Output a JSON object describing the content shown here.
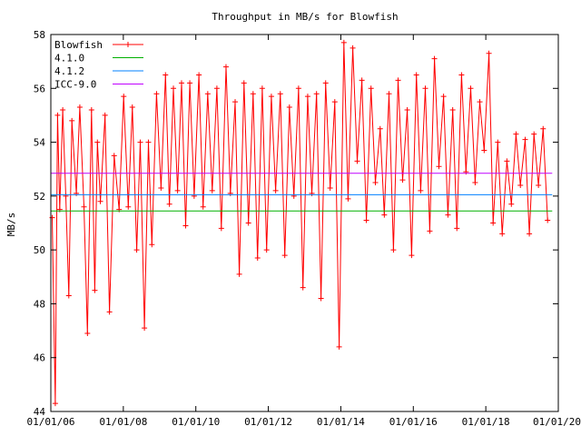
{
  "chart_data": {
    "type": "line",
    "title": "Throughput in MB/s for Blowfish",
    "xlabel": "",
    "ylabel": "MB/s",
    "xlim": [
      "2006-01-01",
      "2020-01-01"
    ],
    "ylim": [
      44,
      58
    ],
    "x_ticks": [
      "01/01/06",
      "01/01/08",
      "01/01/10",
      "01/01/12",
      "01/01/14",
      "01/01/16",
      "01/01/18",
      "01/01/20"
    ],
    "y_ticks": [
      44,
      46,
      48,
      50,
      52,
      54,
      56,
      58
    ],
    "grid": false,
    "legend_position": "top-left",
    "series": [
      {
        "name": "Blowfish",
        "color": "#ff0000",
        "marker": "plus",
        "x": [
          "2006-01-15",
          "2006-02-15",
          "2006-03-10",
          "2006-04-01",
          "2006-05-01",
          "2006-06-01",
          "2006-07-01",
          "2006-08-01",
          "2006-09-15",
          "2006-10-20",
          "2006-12-01",
          "2007-01-05",
          "2007-02-15",
          "2007-03-20",
          "2007-04-15",
          "2007-05-15",
          "2007-07-01",
          "2007-08-15",
          "2007-10-01",
          "2007-11-20",
          "2008-01-05",
          "2008-02-20",
          "2008-04-01",
          "2008-05-15",
          "2008-06-20",
          "2008-08-01",
          "2008-09-10",
          "2008-10-15",
          "2008-12-01",
          "2009-01-15",
          "2009-03-01",
          "2009-04-10",
          "2009-05-20",
          "2009-07-01",
          "2009-08-10",
          "2009-09-20",
          "2009-11-01",
          "2009-12-15",
          "2010-02-01",
          "2010-03-15",
          "2010-05-01",
          "2010-06-15",
          "2010-08-01",
          "2010-09-15",
          "2010-11-01",
          "2010-12-15",
          "2011-02-01",
          "2011-03-15",
          "2011-05-01",
          "2011-06-15",
          "2011-08-01",
          "2011-09-15",
          "2011-11-01",
          "2011-12-15",
          "2012-02-01",
          "2012-03-15",
          "2012-05-01",
          "2012-06-15",
          "2012-08-01",
          "2012-09-15",
          "2012-11-01",
          "2012-12-15",
          "2013-02-01",
          "2013-03-15",
          "2013-05-01",
          "2013-06-15",
          "2013-08-01",
          "2013-09-15",
          "2013-11-01",
          "2013-12-15",
          "2014-02-01",
          "2014-03-15",
          "2014-05-01",
          "2014-06-15",
          "2014-08-01",
          "2014-09-15",
          "2014-11-01",
          "2014-12-15",
          "2015-02-01",
          "2015-03-15",
          "2015-05-01",
          "2015-06-15",
          "2015-08-01",
          "2015-09-15",
          "2015-11-01",
          "2015-12-15",
          "2016-02-01",
          "2016-03-15",
          "2016-05-01",
          "2016-06-15",
          "2016-08-01",
          "2016-09-15",
          "2016-11-01",
          "2016-12-15",
          "2017-02-01",
          "2017-03-15",
          "2017-05-01",
          "2017-06-15",
          "2017-08-01",
          "2017-09-15",
          "2017-11-01",
          "2017-12-15",
          "2018-02-01",
          "2018-03-15",
          "2018-05-01",
          "2018-06-15",
          "2018-08-01",
          "2018-09-15",
          "2018-11-01",
          "2018-12-15",
          "2019-02-01",
          "2019-03-15",
          "2019-05-01",
          "2019-06-15",
          "2019-08-01",
          "2019-09-15"
        ],
        "y": [
          51.2,
          44.3,
          55.0,
          51.5,
          55.2,
          52.0,
          48.3,
          54.8,
          52.1,
          55.3,
          51.6,
          46.9,
          55.2,
          48.5,
          54.0,
          51.8,
          55.0,
          47.7,
          53.5,
          51.5,
          55.7,
          51.6,
          55.3,
          50.0,
          54.0,
          47.1,
          54.0,
          50.2,
          55.8,
          52.3,
          56.5,
          51.7,
          56.0,
          52.2,
          56.2,
          50.9,
          56.2,
          52.0,
          56.5,
          51.6,
          55.8,
          52.2,
          56.0,
          50.8,
          56.8,
          52.1,
          55.5,
          49.1,
          56.2,
          51.0,
          55.8,
          49.7,
          56.0,
          50.0,
          55.7,
          52.2,
          55.8,
          49.8,
          55.3,
          52.0,
          56.0,
          48.6,
          55.7,
          52.1,
          55.8,
          48.2,
          56.2,
          52.3,
          55.5,
          46.4,
          57.7,
          51.9,
          57.5,
          53.3,
          56.3,
          51.1,
          56.0,
          52.5,
          54.5,
          51.3,
          55.8,
          50.0,
          56.3,
          52.6,
          55.2,
          49.8,
          56.5,
          52.2,
          56.0,
          50.7,
          57.1,
          53.1,
          55.7,
          51.3,
          55.2,
          50.8,
          56.5,
          52.9,
          56.0,
          52.5,
          55.5,
          53.7,
          57.3,
          51.0,
          54.0,
          50.6,
          53.3,
          51.7,
          54.3,
          52.4,
          54.1,
          50.6,
          54.3,
          52.4,
          54.5,
          51.1
        ]
      },
      {
        "name": "4.1.0",
        "color": "#00b000",
        "x": [
          "2006-01-01",
          "2019-11-01"
        ],
        "y": [
          51.45,
          51.45
        ]
      },
      {
        "name": "4.1.2",
        "color": "#0080ff",
        "x": [
          "2006-01-01",
          "2019-11-01"
        ],
        "y": [
          52.05,
          52.05
        ]
      },
      {
        "name": "ICC-9.0",
        "color": "#c000ff",
        "x": [
          "2006-01-01",
          "2019-11-01"
        ],
        "y": [
          52.85,
          52.85
        ]
      }
    ]
  }
}
